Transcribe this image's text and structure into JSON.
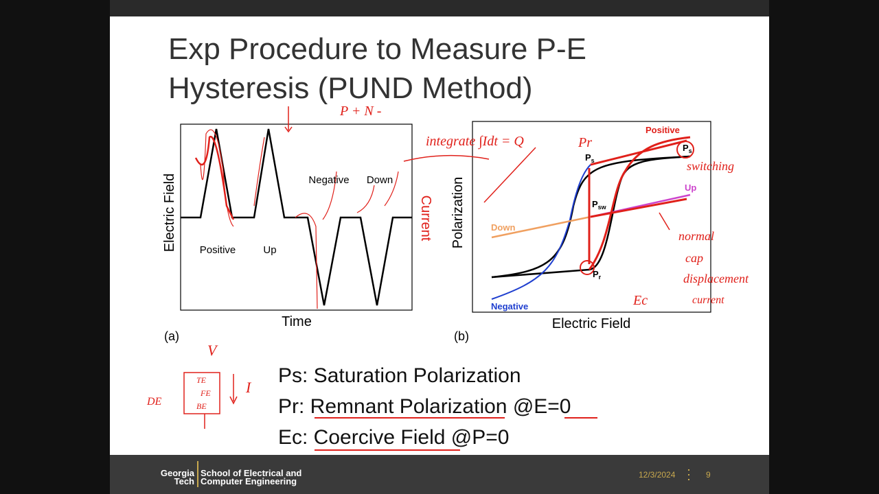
{
  "slide": {
    "title": [
      "Exp Procedure to Measure P-E",
      "Hysteresis (PUND Method)"
    ],
    "figure_a": {
      "y_label": "Electric Field",
      "x_label": "Time",
      "right_label": "Current",
      "labels": [
        "Positive",
        "Up",
        "Negative",
        "Down"
      ],
      "caption": "(a)"
    },
    "figure_b": {
      "y_label": "Polarization",
      "x_label": "Electric Field",
      "labels": [
        "Positive",
        "Up",
        "Down",
        "Negative"
      ],
      "points": [
        {
          "main": "P",
          "sub": "s"
        },
        {
          "main": "P",
          "sub": "sw"
        },
        {
          "main": "P",
          "sub": "r"
        },
        {
          "main": "P",
          "sub": "s"
        }
      ],
      "caption": "(b)"
    },
    "definitions": [
      "Ps: Saturation Polarization",
      "Pr: Remnant Polarization @E=0",
      "Ec: Coercive Field @P=0"
    ],
    "handwriting": {
      "pn": "P + N -",
      "integral": "integrate ∫Idt = Q",
      "pr": "Pr",
      "switching": "switching",
      "normal": [
        "normal",
        "cap",
        "displacement",
        "current"
      ],
      "ec": "Ec",
      "v": "V",
      "i": "I",
      "layers": [
        "TE",
        "FE",
        "BE"
      ],
      "de": "DE"
    },
    "footer": {
      "logo": [
        "Georgia",
        "Tech"
      ],
      "school": [
        "School of Electrical and",
        "Computer Engineering"
      ],
      "date": "12/3/2024",
      "page": "9"
    }
  }
}
